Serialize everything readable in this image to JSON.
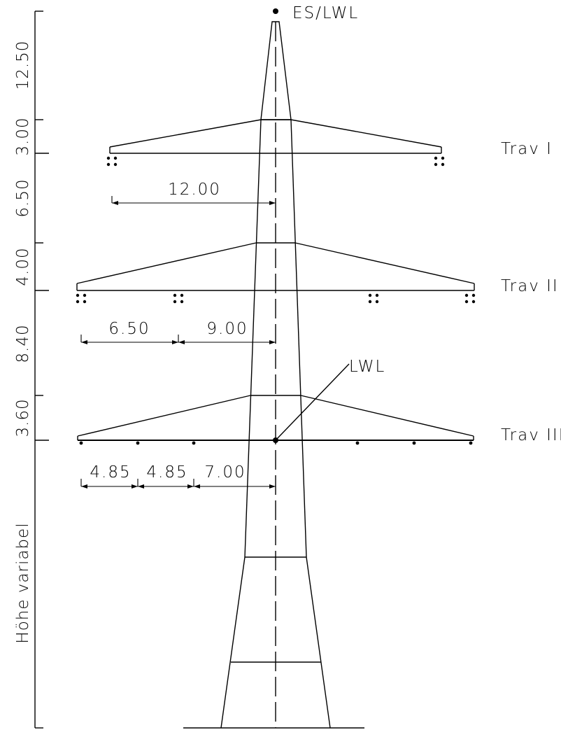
{
  "labels": {
    "top_conductor": "ES/LWL",
    "lwl": "LWL"
  },
  "crossarms": [
    {
      "name": "Trav I"
    },
    {
      "name": "Trav II"
    },
    {
      "name": "Trav III"
    }
  ],
  "heights": [
    "12.50",
    "3.00",
    "6.50",
    "4.00",
    "8.40",
    "3.60",
    "Höhe variabel"
  ],
  "dimensions": {
    "trav1": [
      "12.00"
    ],
    "trav2": [
      "6.50",
      "9.00"
    ],
    "trav3": [
      "4.85",
      "4.85",
      "7.00"
    ]
  }
}
